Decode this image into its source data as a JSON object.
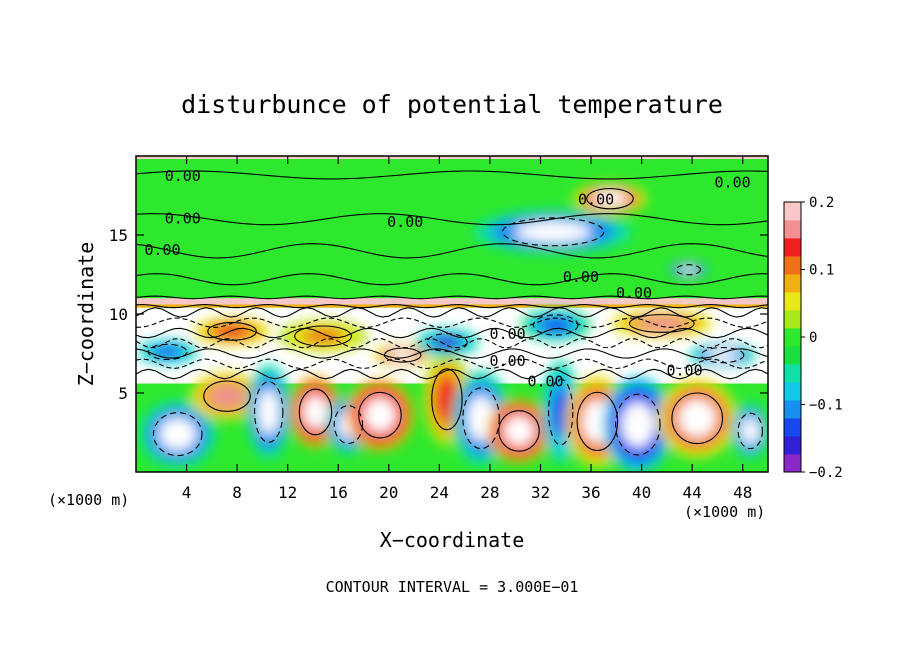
{
  "chart_data": {
    "type": "heatmap",
    "title": "disturbunce of potential temperature",
    "xlabel": "X−coordinate",
    "ylabel": "Z−coordinate",
    "x_unit_left": "(×1000 m)",
    "x_unit_right": "(×1000 m)",
    "footer": "CONTOUR INTERVAL = 3.000E−01",
    "xlim": [
      0,
      50
    ],
    "ylim": [
      0,
      20
    ],
    "x_ticks": [
      {
        "value": 4,
        "label": "4"
      },
      {
        "value": 8,
        "label": "8"
      },
      {
        "value": 12,
        "label": "12"
      },
      {
        "value": 16,
        "label": "16"
      },
      {
        "value": 20,
        "label": "20"
      },
      {
        "value": 24,
        "label": "24"
      },
      {
        "value": 28,
        "label": "28"
      },
      {
        "value": 32,
        "label": "32"
      },
      {
        "value": 36,
        "label": "36"
      },
      {
        "value": 40,
        "label": "40"
      },
      {
        "value": 44,
        "label": "44"
      },
      {
        "value": 48,
        "label": "48"
      }
    ],
    "y_ticks": [
      {
        "value": 5,
        "label": "5"
      },
      {
        "value": 10,
        "label": "10"
      },
      {
        "value": 15,
        "label": "15"
      }
    ],
    "colorbar": {
      "range": [
        -0.2,
        0.2
      ],
      "ticks": [
        {
          "value": 0.2,
          "label": "0.2"
        },
        {
          "value": 0.1,
          "label": "0.1"
        },
        {
          "value": 0,
          "label": "0"
        },
        {
          "value": -0.1,
          "label": "−0.1"
        },
        {
          "value": -0.2,
          "label": "−0.2"
        }
      ],
      "colors": [
        "#8a2ac8",
        "#3020d8",
        "#1848f0",
        "#1890f0",
        "#10c8e8",
        "#10e0a8",
        "#18e040",
        "#2ee82e",
        "#a8e818",
        "#e8e818",
        "#f0b010",
        "#f07018",
        "#f02020",
        "#f09090",
        "#f8c8c8"
      ]
    },
    "contour_label": "0.00",
    "contour_labels": [
      {
        "x": 3.7,
        "y": 18.8
      },
      {
        "x": 3.7,
        "y": 16.1
      },
      {
        "x": 2.1,
        "y": 14.1
      },
      {
        "x": 21.3,
        "y": 15.9
      },
      {
        "x": 36.4,
        "y": 17.3
      },
      {
        "x": 47.2,
        "y": 18.4
      },
      {
        "x": 35.2,
        "y": 12.4
      },
      {
        "x": 39.4,
        "y": 11.4
      },
      {
        "x": 29.4,
        "y": 8.8
      },
      {
        "x": 29.4,
        "y": 7.1
      },
      {
        "x": 32.4,
        "y": 5.8
      },
      {
        "x": 43.4,
        "y": 6.5
      }
    ],
    "field_blobs": [
      {
        "x": 33,
        "y": 15.2,
        "rx": 5,
        "ry": 1.1,
        "v": -0.1
      },
      {
        "x": 37.5,
        "y": 17.3,
        "rx": 2.3,
        "ry": 0.8,
        "v": 0.1
      },
      {
        "x": 43.7,
        "y": 12.8,
        "rx": 1.2,
        "ry": 0.4,
        "v": -0.13
      },
      {
        "x": 3.3,
        "y": 2.4,
        "rx": 2.4,
        "ry": 1.7,
        "v": -0.12
      },
      {
        "x": 7.2,
        "y": 4.8,
        "rx": 2.3,
        "ry": 1.2,
        "v": 0.09
      },
      {
        "x": 10.5,
        "y": 3.8,
        "rx": 1.4,
        "ry": 2.4,
        "v": -0.11
      },
      {
        "x": 14.2,
        "y": 3.8,
        "rx": 1.6,
        "ry": 1.8,
        "v": 0.13
      },
      {
        "x": 16.8,
        "y": 3.0,
        "rx": 1.4,
        "ry": 1.5,
        "v": -0.12
      },
      {
        "x": 19.3,
        "y": 3.6,
        "rx": 2.1,
        "ry": 1.8,
        "v": 0.14
      },
      {
        "x": 24.6,
        "y": 4.6,
        "rx": 1.5,
        "ry": 2.4,
        "v": 0.07
      },
      {
        "x": 27.3,
        "y": 3.4,
        "rx": 1.8,
        "ry": 2.4,
        "v": -0.12
      },
      {
        "x": 30.3,
        "y": 2.6,
        "rx": 2.0,
        "ry": 1.6,
        "v": 0.14
      },
      {
        "x": 33.6,
        "y": 3.8,
        "rx": 1.2,
        "ry": 2.6,
        "v": -0.08
      },
      {
        "x": 36.5,
        "y": 3.2,
        "rx": 2.0,
        "ry": 2.3,
        "v": 0.12
      },
      {
        "x": 39.7,
        "y": 3.0,
        "rx": 2.2,
        "ry": 2.4,
        "v": -0.13
      },
      {
        "x": 44.4,
        "y": 3.4,
        "rx": 2.5,
        "ry": 2.0,
        "v": 0.11
      },
      {
        "x": 48.6,
        "y": 2.6,
        "rx": 1.2,
        "ry": 1.4,
        "v": -0.1
      },
      {
        "x": 2.5,
        "y": 7.6,
        "rx": 1.9,
        "ry": 0.6,
        "v": -0.08
      },
      {
        "x": 7.6,
        "y": 8.9,
        "rx": 2.4,
        "ry": 0.7,
        "v": 0.08
      },
      {
        "x": 14.8,
        "y": 8.6,
        "rx": 2.8,
        "ry": 0.8,
        "v": 0.06
      },
      {
        "x": 21.1,
        "y": 7.4,
        "rx": 1.8,
        "ry": 0.55,
        "v": 0.11
      },
      {
        "x": 24.6,
        "y": 8.2,
        "rx": 2.0,
        "ry": 0.7,
        "v": -0.09
      },
      {
        "x": 33.2,
        "y": 9.3,
        "rx": 2.2,
        "ry": 0.8,
        "v": -0.07
      },
      {
        "x": 41.6,
        "y": 9.4,
        "rx": 3.2,
        "ry": 0.7,
        "v": 0.09
      },
      {
        "x": 46.4,
        "y": 7.4,
        "rx": 2.1,
        "ry": 0.6,
        "v": -0.1
      }
    ]
  }
}
